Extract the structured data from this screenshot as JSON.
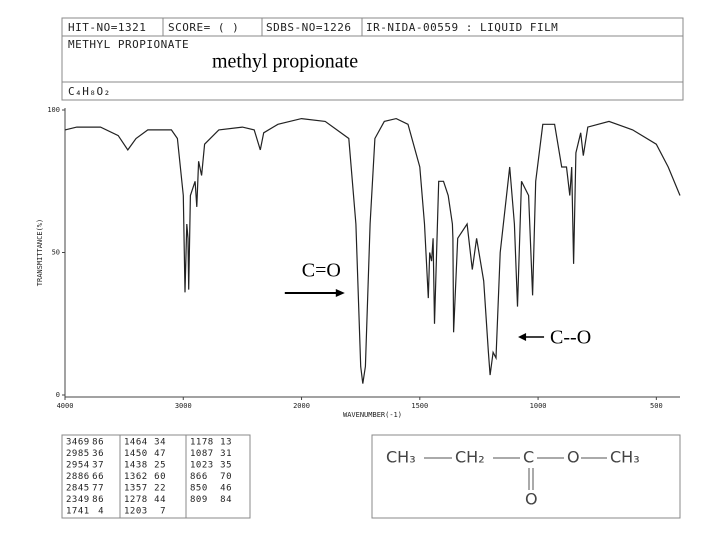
{
  "header": {
    "hit_no": "HIT-NO=1321",
    "score": "SCORE= ( )",
    "sdbs_no": "SDBS-NO=1226",
    "ir_no": "IR-NIDA-00559 : LIQUID FILM",
    "name": "METHYL PROPIONATE",
    "name_display": "methyl propionate",
    "formula": "C₄H₈O₂"
  },
  "chart_data": {
    "type": "line",
    "xlabel": "WAVENUMBER(-1)",
    "ylabel": "TRANSMITTANCE(%)",
    "xlim": [
      4000,
      400
    ],
    "x_scale_break": 2000,
    "x_scale_factor": 2,
    "xticks": [
      4000,
      3000,
      2000,
      1500,
      1000,
      500
    ],
    "ylim": [
      0,
      100
    ],
    "yticks": [
      0,
      50,
      100
    ],
    "color": "#222222",
    "x": [
      4000,
      3900,
      3700,
      3550,
      3469,
      3400,
      3300,
      3100,
      3050,
      3000,
      2985,
      2970,
      2960,
      2954,
      2940,
      2900,
      2886,
      2870,
      2845,
      2820,
      2700,
      2500,
      2400,
      2349,
      2320,
      2200,
      2000,
      1900,
      1800,
      1770,
      1750,
      1741,
      1730,
      1710,
      1690,
      1650,
      1600,
      1550,
      1500,
      1480,
      1464,
      1458,
      1450,
      1444,
      1438,
      1420,
      1400,
      1380,
      1362,
      1360,
      1357,
      1340,
      1300,
      1278,
      1260,
      1230,
      1210,
      1203,
      1190,
      1178,
      1160,
      1120,
      1100,
      1087,
      1070,
      1040,
      1023,
      1010,
      980,
      930,
      900,
      880,
      866,
      858,
      850,
      840,
      820,
      809,
      790,
      700,
      600,
      500,
      450,
      400
    ],
    "values": [
      93,
      94,
      94,
      91,
      86,
      90,
      93,
      93,
      90,
      70,
      36,
      60,
      55,
      37,
      70,
      75,
      66,
      82,
      77,
      88,
      93,
      94,
      93,
      86,
      92,
      95,
      97,
      96,
      90,
      60,
      10,
      4,
      10,
      60,
      90,
      96,
      97,
      95,
      80,
      60,
      34,
      50,
      47,
      55,
      25,
      75,
      75,
      70,
      60,
      55,
      22,
      55,
      60,
      44,
      55,
      40,
      15,
      7,
      15,
      13,
      50,
      80,
      60,
      31,
      75,
      70,
      35,
      75,
      95,
      95,
      80,
      80,
      70,
      80,
      46,
      85,
      92,
      84,
      94,
      96,
      93,
      88,
      80,
      70
    ],
    "annotations": [
      {
        "text": "C=O",
        "x": 1741
      },
      {
        "text": "C--O",
        "x": 1203
      }
    ]
  },
  "peak_table": {
    "rows": [
      [
        "3469",
        "86",
        "1464",
        "34",
        "1178",
        "13"
      ],
      [
        "2985",
        "36",
        "1450",
        "47",
        "1087",
        "31"
      ],
      [
        "2954",
        "37",
        "1438",
        "25",
        "1023",
        "35"
      ],
      [
        "2886",
        "66",
        "1362",
        "60",
        "866",
        "70"
      ],
      [
        "2845",
        "77",
        "1357",
        "22",
        "850",
        "46"
      ],
      [
        "2349",
        "86",
        "1278",
        "44",
        "809",
        "84"
      ],
      [
        "1741",
        "4",
        "1203",
        "7",
        "",
        ""
      ]
    ]
  },
  "structure": {
    "chain": [
      "CH₃",
      "CH₂",
      "C",
      "O",
      "CH₃"
    ],
    "carbonyl": "O"
  }
}
